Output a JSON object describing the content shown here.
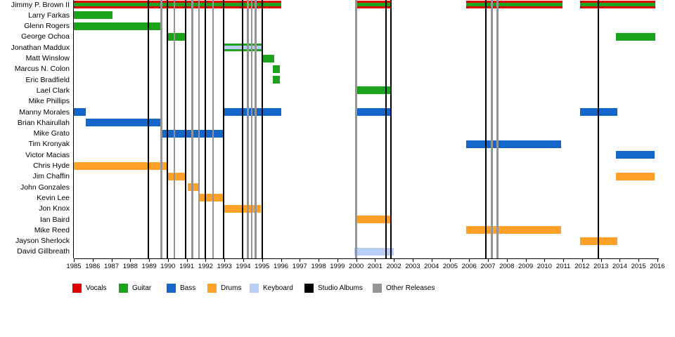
{
  "chart_data": {
    "type": "timeline-gantt",
    "title": "",
    "x_axis": {
      "start": 1985,
      "end": 2016,
      "tick_labels": [
        "1985",
        "1986",
        "1987",
        "1988",
        "1989",
        "1990",
        "1991",
        "1992",
        "1993",
        "1994",
        "1995",
        "1996",
        "1997",
        "1998",
        "1999",
        "2000",
        "2001",
        "2002",
        "2003",
        "2004",
        "2005",
        "2006",
        "2007",
        "2008",
        "2009",
        "2010",
        "2011",
        "2012",
        "2013",
        "2014",
        "2015",
        "2016"
      ]
    },
    "colors": {
      "vocals": "#E10000",
      "guitar": "#1CA31C",
      "bass": "#1467C8",
      "drums": "#FFA126",
      "keyboard": "#B9CDF5",
      "studio_albums": "#000000",
      "other_releases": "#959595"
    },
    "legend": [
      {
        "label": "Vocals",
        "color_key": "vocals"
      },
      {
        "label": "Guitar",
        "color_key": "guitar"
      },
      {
        "label": "Bass",
        "color_key": "bass"
      },
      {
        "label": "Drums",
        "color_key": "drums"
      },
      {
        "label": "Keyboard",
        "color_key": "keyboard"
      },
      {
        "label": "Studio Albums",
        "color_key": "studio_albums"
      },
      {
        "label": "Other Releases",
        "color_key": "other_releases"
      }
    ],
    "members": [
      {
        "name": "Jimmy P. Brown II",
        "role": "vocals",
        "stripe": "guitar",
        "segments": [
          [
            1985.0,
            1996.0
          ],
          [
            1999.95,
            2001.9
          ],
          [
            2005.85,
            2010.95
          ],
          [
            2011.9,
            2015.9
          ]
        ]
      },
      {
        "name": "Larry Farkas",
        "role": "guitar",
        "stripe": null,
        "segments": [
          [
            1985.0,
            1987.05
          ]
        ]
      },
      {
        "name": "Glenn Rogers",
        "role": "guitar",
        "stripe": null,
        "segments": [
          [
            1985.0,
            1989.65
          ]
        ]
      },
      {
        "name": "George Ochoa",
        "role": "guitar",
        "stripe": null,
        "segments": [
          [
            1989.98,
            1990.92
          ],
          [
            2013.8,
            2015.9
          ]
        ]
      },
      {
        "name": "Jonathan Maddux",
        "role": "guitar",
        "stripe": "keyboard",
        "segments": [
          [
            1992.95,
            1994.97
          ]
        ]
      },
      {
        "name": "Matt Winslow",
        "role": "guitar",
        "stripe": null,
        "segments": [
          [
            1995.0,
            1995.65
          ]
        ]
      },
      {
        "name": "Marcus N. Colon",
        "role": "guitar",
        "stripe": null,
        "segments": [
          [
            1995.57,
            1995.95
          ]
        ]
      },
      {
        "name": "Eric Bradfield",
        "role": "guitar",
        "stripe": null,
        "segments": [
          [
            1995.57,
            1995.95
          ]
        ]
      },
      {
        "name": "Lael Clark",
        "role": "guitar",
        "stripe": null,
        "segments": [
          [
            1999.95,
            2001.9
          ]
        ]
      },
      {
        "name": "Mike Phillips",
        "role": "guitar",
        "stripe": null,
        "segments": []
      },
      {
        "name": "Manny Morales",
        "role": "bass",
        "stripe": null,
        "segments": [
          [
            1985.0,
            1985.65
          ],
          [
            1992.95,
            1996.0
          ],
          [
            1999.95,
            2001.9
          ],
          [
            2011.9,
            2013.87
          ]
        ]
      },
      {
        "name": "Brian Khairullah",
        "role": "bass",
        "stripe": null,
        "segments": [
          [
            1985.65,
            1989.65
          ]
        ]
      },
      {
        "name": "Mike Grato",
        "role": "bass",
        "stripe": null,
        "segments": [
          [
            1989.65,
            1992.95
          ]
        ]
      },
      {
        "name": "Tim Kronyak",
        "role": "bass",
        "stripe": null,
        "segments": [
          [
            2005.85,
            2010.9
          ]
        ]
      },
      {
        "name": "Victor Macias",
        "role": "bass",
        "stripe": null,
        "segments": [
          [
            2013.8,
            2015.85
          ]
        ]
      },
      {
        "name": "Chris Hyde",
        "role": "drums",
        "stripe": null,
        "segments": [
          [
            1985.0,
            1989.98
          ]
        ]
      },
      {
        "name": "Jim Chaffin",
        "role": "drums",
        "stripe": null,
        "segments": [
          [
            1989.98,
            1990.95
          ],
          [
            2013.8,
            2015.85
          ]
        ]
      },
      {
        "name": "John Gonzales",
        "role": "drums",
        "stripe": null,
        "segments": [
          [
            1991.05,
            1991.62
          ]
        ]
      },
      {
        "name": "Kevin Lee",
        "role": "drums",
        "stripe": null,
        "segments": [
          [
            1991.62,
            1992.95
          ]
        ]
      },
      {
        "name": "Jon Knox",
        "role": "drums",
        "stripe": null,
        "segments": [
          [
            1992.95,
            1994.95
          ]
        ]
      },
      {
        "name": "Ian Baird",
        "role": "drums",
        "stripe": null,
        "segments": [
          [
            1999.95,
            2001.9
          ]
        ]
      },
      {
        "name": "Mike Reed",
        "role": "drums",
        "stripe": null,
        "segments": [
          [
            2005.85,
            2010.9
          ]
        ]
      },
      {
        "name": "Jayson Sherlock",
        "role": "drums",
        "stripe": null,
        "segments": [
          [
            2011.9,
            2013.87
          ]
        ]
      },
      {
        "name": "David Gillbreath",
        "role": "keyboard",
        "stripe": null,
        "segments": [
          [
            1999.9,
            2002.0
          ]
        ]
      }
    ],
    "studio_album_lines": [
      1988.95,
      1989.98,
      1990.95,
      1992.0,
      1992.95,
      1993.97,
      1995.0,
      2001.6,
      2001.85,
      2006.9,
      2012.85
    ],
    "other_release_lines": [
      1989.65,
      1990.35,
      1991.3,
      1991.65,
      1992.4,
      1994.25,
      1994.45,
      1994.65,
      2000.0,
      2007.2,
      2007.5
    ]
  }
}
